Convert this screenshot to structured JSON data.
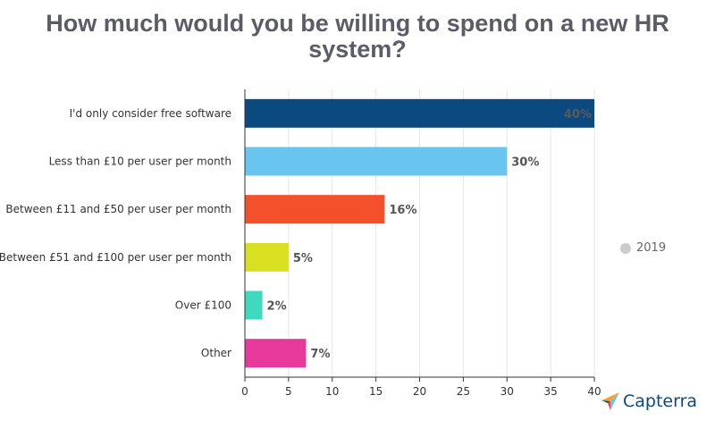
{
  "title_lines": [
    "How much would you be willing to spend on a new HR",
    "system?"
  ],
  "legend": {
    "label": "2019",
    "color": "#cccccc"
  },
  "brand": {
    "name": "Capterra"
  },
  "chart_data": {
    "type": "bar",
    "orientation": "horizontal",
    "title": "How much would you be willing to spend on a new HR system?",
    "categories": [
      "I'd only consider free software",
      "Less than £10 per user per month",
      "Between £11 and £50 per user per month",
      "Between £51 and £100 per user per month",
      "Over £100",
      "Other"
    ],
    "values": [
      40,
      30,
      16,
      5,
      2,
      7
    ],
    "data_labels": [
      "40%",
      "30%",
      "16%",
      "5%",
      "2%",
      "7%"
    ],
    "colors": [
      "#0b4a7f",
      "#6ac4f0",
      "#f5502c",
      "#d9e021",
      "#3fd9c0",
      "#e6399b"
    ],
    "series_name": "2019",
    "xlim": [
      0,
      40
    ],
    "xticks": [
      0,
      5,
      10,
      15,
      20,
      25,
      30,
      35,
      40
    ],
    "grid": true,
    "legend_position": "right"
  }
}
